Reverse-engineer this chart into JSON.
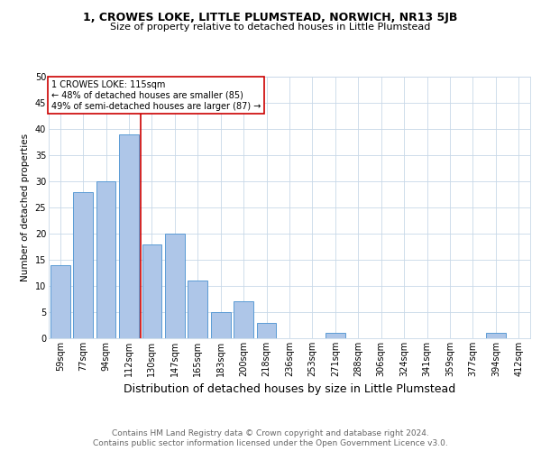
{
  "title1": "1, CROWES LOKE, LITTLE PLUMSTEAD, NORWICH, NR13 5JB",
  "title2": "Size of property relative to detached houses in Little Plumstead",
  "xlabel": "Distribution of detached houses by size in Little Plumstead",
  "ylabel": "Number of detached properties",
  "categories": [
    "59sqm",
    "77sqm",
    "94sqm",
    "112sqm",
    "130sqm",
    "147sqm",
    "165sqm",
    "183sqm",
    "200sqm",
    "218sqm",
    "236sqm",
    "253sqm",
    "271sqm",
    "288sqm",
    "306sqm",
    "324sqm",
    "341sqm",
    "359sqm",
    "377sqm",
    "394sqm",
    "412sqm"
  ],
  "values": [
    14,
    28,
    30,
    39,
    18,
    20,
    11,
    5,
    7,
    3,
    0,
    0,
    1,
    0,
    0,
    0,
    0,
    0,
    0,
    1,
    0
  ],
  "bar_color": "#aec6e8",
  "bar_edge_color": "#5b9bd5",
  "vline_x": 3.5,
  "vline_color": "#cc0000",
  "annotation_text": "1 CROWES LOKE: 115sqm\n← 48% of detached houses are smaller (85)\n49% of semi-detached houses are larger (87) →",
  "annotation_box_color": "#ffffff",
  "annotation_box_edge": "#cc0000",
  "ylim": [
    0,
    50
  ],
  "yticks": [
    0,
    5,
    10,
    15,
    20,
    25,
    30,
    35,
    40,
    45,
    50
  ],
  "footer1": "Contains HM Land Registry data © Crown copyright and database right 2024.",
  "footer2": "Contains public sector information licensed under the Open Government Licence v3.0.",
  "bg_color": "#ffffff",
  "grid_color": "#c8d8e8",
  "title1_fontsize": 9,
  "title2_fontsize": 8,
  "xlabel_fontsize": 9,
  "ylabel_fontsize": 7.5,
  "tick_fontsize": 7,
  "annotation_fontsize": 7,
  "footer_fontsize": 6.5
}
